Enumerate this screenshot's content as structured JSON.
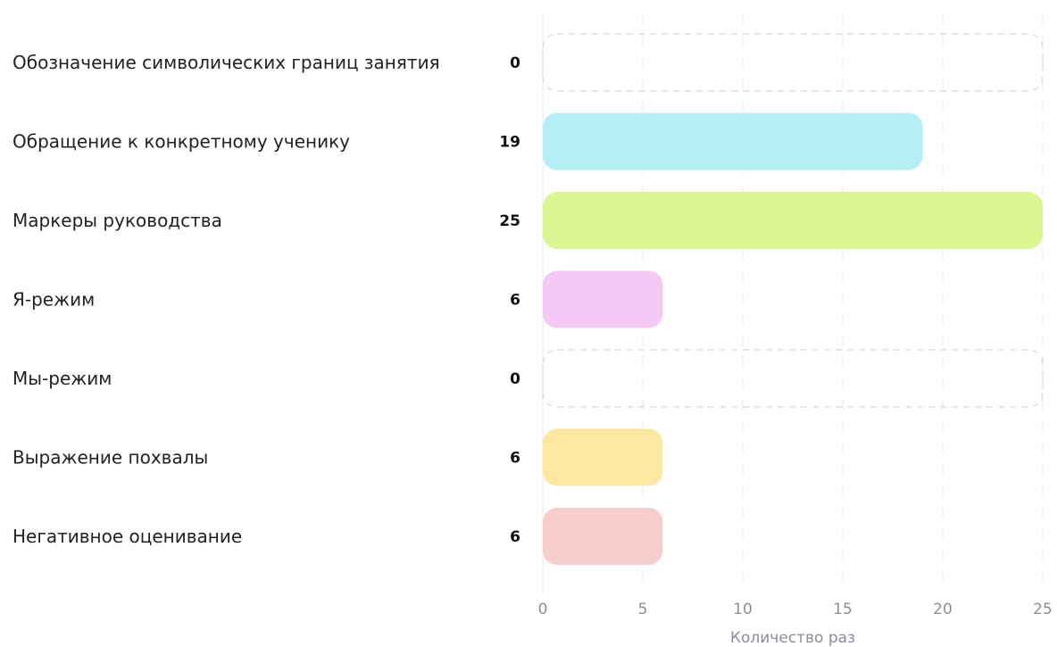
{
  "chart_data": {
    "type": "bar",
    "orientation": "horizontal",
    "categories": [
      "Обозначение символических границ занятия",
      "Обращение к конкретному ученику",
      "Маркеры руководства",
      "Я-режим",
      "Мы-режим",
      "Выражение похвалы",
      "Негативное оценивание"
    ],
    "values": [
      0,
      19,
      25,
      6,
      0,
      6,
      6
    ],
    "colors": [
      "#cfd3dc",
      "#b5eef6",
      "#dcf593",
      "#f4c9f5",
      "#cfd3dc",
      "#fce8a0",
      "#f6cfcd"
    ],
    "xlabel": "Количество раз",
    "ylabel": "",
    "xlim": [
      0,
      25
    ],
    "xticks": [
      0,
      5,
      10,
      15,
      20,
      25
    ],
    "grid": true
  }
}
